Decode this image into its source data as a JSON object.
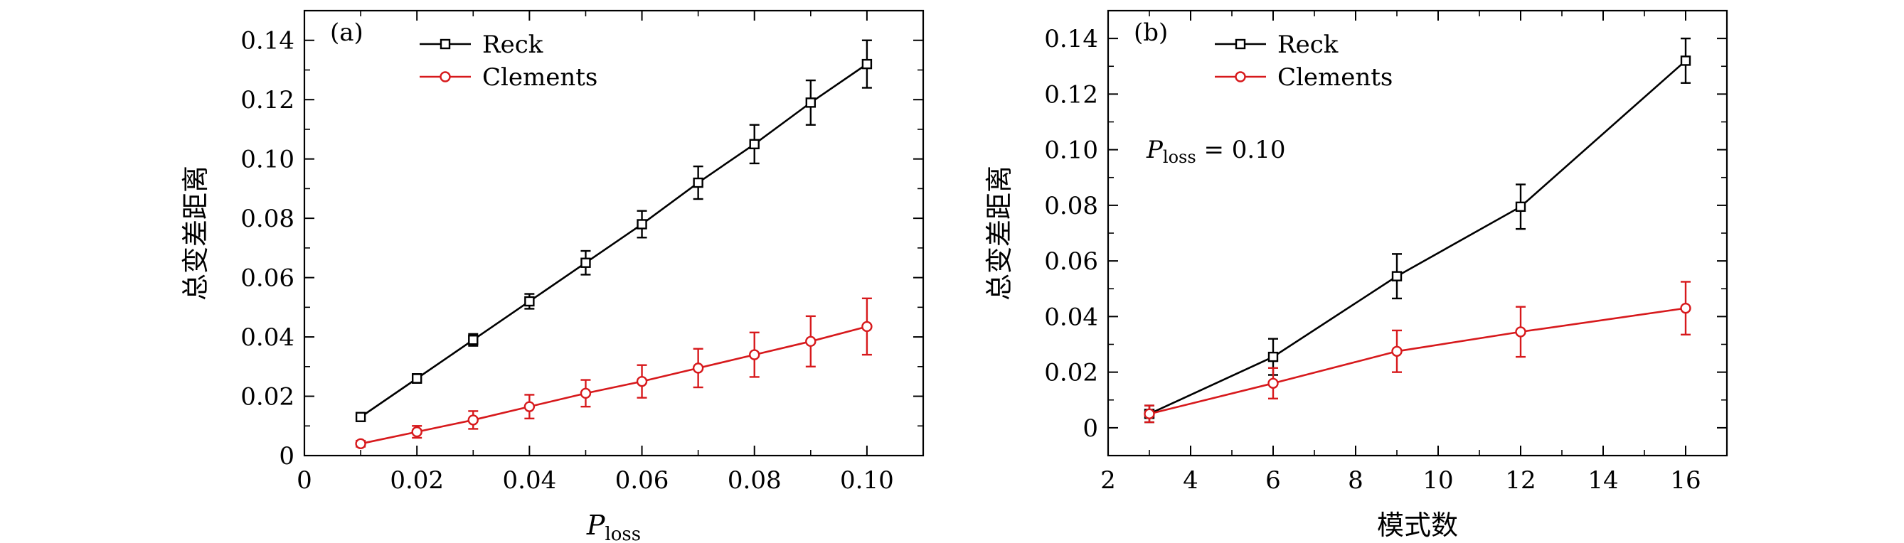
{
  "chart_data": [
    {
      "type": "line",
      "panel_label": "(a)",
      "xlabel": "P",
      "xlabel_sub": "loss",
      "ylabel": "总变差距离",
      "xlim": [
        0,
        0.11
      ],
      "ylim": [
        0,
        0.15
      ],
      "xticks": [
        "0",
        "0.02",
        "0.04",
        "0.06",
        "0.08",
        "0.10"
      ],
      "xtick_values": [
        0,
        0.02,
        0.04,
        0.06,
        0.08,
        0.1
      ],
      "yticks": [
        "0",
        "0.02",
        "0.04",
        "0.06",
        "0.08",
        "0.10",
        "0.12",
        "0.14"
      ],
      "ytick_values": [
        0,
        0.02,
        0.04,
        0.06,
        0.08,
        0.1,
        0.12,
        0.14
      ],
      "legend_position": "top-center",
      "series": [
        {
          "name": "Reck",
          "color": "#000000",
          "marker": "square",
          "x": [
            0.01,
            0.02,
            0.03,
            0.04,
            0.05,
            0.06,
            0.07,
            0.08,
            0.09,
            0.1
          ],
          "y": [
            0.013,
            0.026,
            0.039,
            0.052,
            0.065,
            0.078,
            0.092,
            0.105,
            0.119,
            0.132
          ],
          "err": [
            0.001,
            0.0015,
            0.002,
            0.0025,
            0.004,
            0.0045,
            0.0055,
            0.0065,
            0.0075,
            0.008
          ]
        },
        {
          "name": "Clements",
          "color": "#d7191c",
          "marker": "circle",
          "x": [
            0.01,
            0.02,
            0.03,
            0.04,
            0.05,
            0.06,
            0.07,
            0.08,
            0.09,
            0.1
          ],
          "y": [
            0.004,
            0.008,
            0.012,
            0.0165,
            0.021,
            0.025,
            0.0295,
            0.034,
            0.0385,
            0.0435
          ],
          "err": [
            0.001,
            0.002,
            0.003,
            0.004,
            0.0045,
            0.0055,
            0.0065,
            0.0075,
            0.0085,
            0.0095
          ]
        }
      ]
    },
    {
      "type": "line",
      "panel_label": "(b)",
      "xlabel": "模式数",
      "ylabel": "总变差距离",
      "annotation_main": "P",
      "annotation_sub": "loss",
      "annotation_rest": " = 0.10",
      "xlim": [
        2,
        17
      ],
      "ylim": [
        -0.01,
        0.15
      ],
      "xticks": [
        "2",
        "4",
        "6",
        "8",
        "10",
        "12",
        "14",
        "16"
      ],
      "xtick_values": [
        2,
        4,
        6,
        8,
        10,
        12,
        14,
        16
      ],
      "yticks": [
        "0",
        "0.02",
        "0.04",
        "0.06",
        "0.08",
        "0.10",
        "0.12",
        "0.14"
      ],
      "ytick_values": [
        0,
        0.02,
        0.04,
        0.06,
        0.08,
        0.1,
        0.12,
        0.14
      ],
      "legend_position": "top-center",
      "series": [
        {
          "name": "Reck",
          "color": "#000000",
          "marker": "square",
          "x": [
            3,
            6,
            9,
            12,
            16
          ],
          "y": [
            0.005,
            0.0255,
            0.0545,
            0.0795,
            0.132
          ],
          "err": [
            0.003,
            0.0065,
            0.008,
            0.008,
            0.008
          ]
        },
        {
          "name": "Clements",
          "color": "#d7191c",
          "marker": "circle",
          "x": [
            3,
            6,
            9,
            12,
            16
          ],
          "y": [
            0.005,
            0.016,
            0.0275,
            0.0345,
            0.043
          ],
          "err": [
            0.003,
            0.0055,
            0.0075,
            0.009,
            0.0095
          ]
        }
      ]
    }
  ]
}
